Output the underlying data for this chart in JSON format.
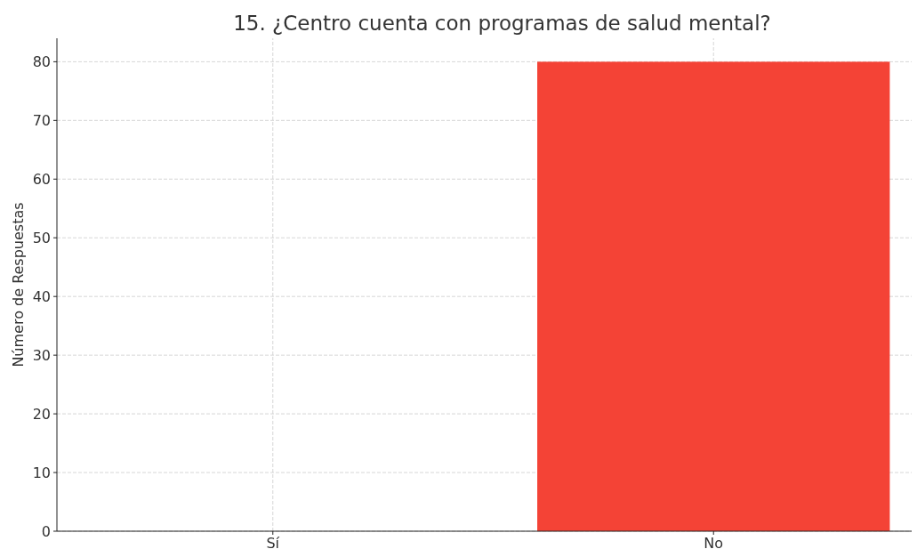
{
  "chart_data": {
    "type": "bar",
    "title": "15. ¿Centro cuenta con programas de salud mental?",
    "ylabel": "Número de Respuestas",
    "categories": [
      "Sí",
      "No"
    ],
    "values": [
      0,
      80
    ],
    "color": "#f44336",
    "ylim": [
      0,
      84
    ],
    "yticks": [
      0,
      10,
      20,
      30,
      40,
      50,
      60,
      70,
      80
    ],
    "grid": true
  }
}
